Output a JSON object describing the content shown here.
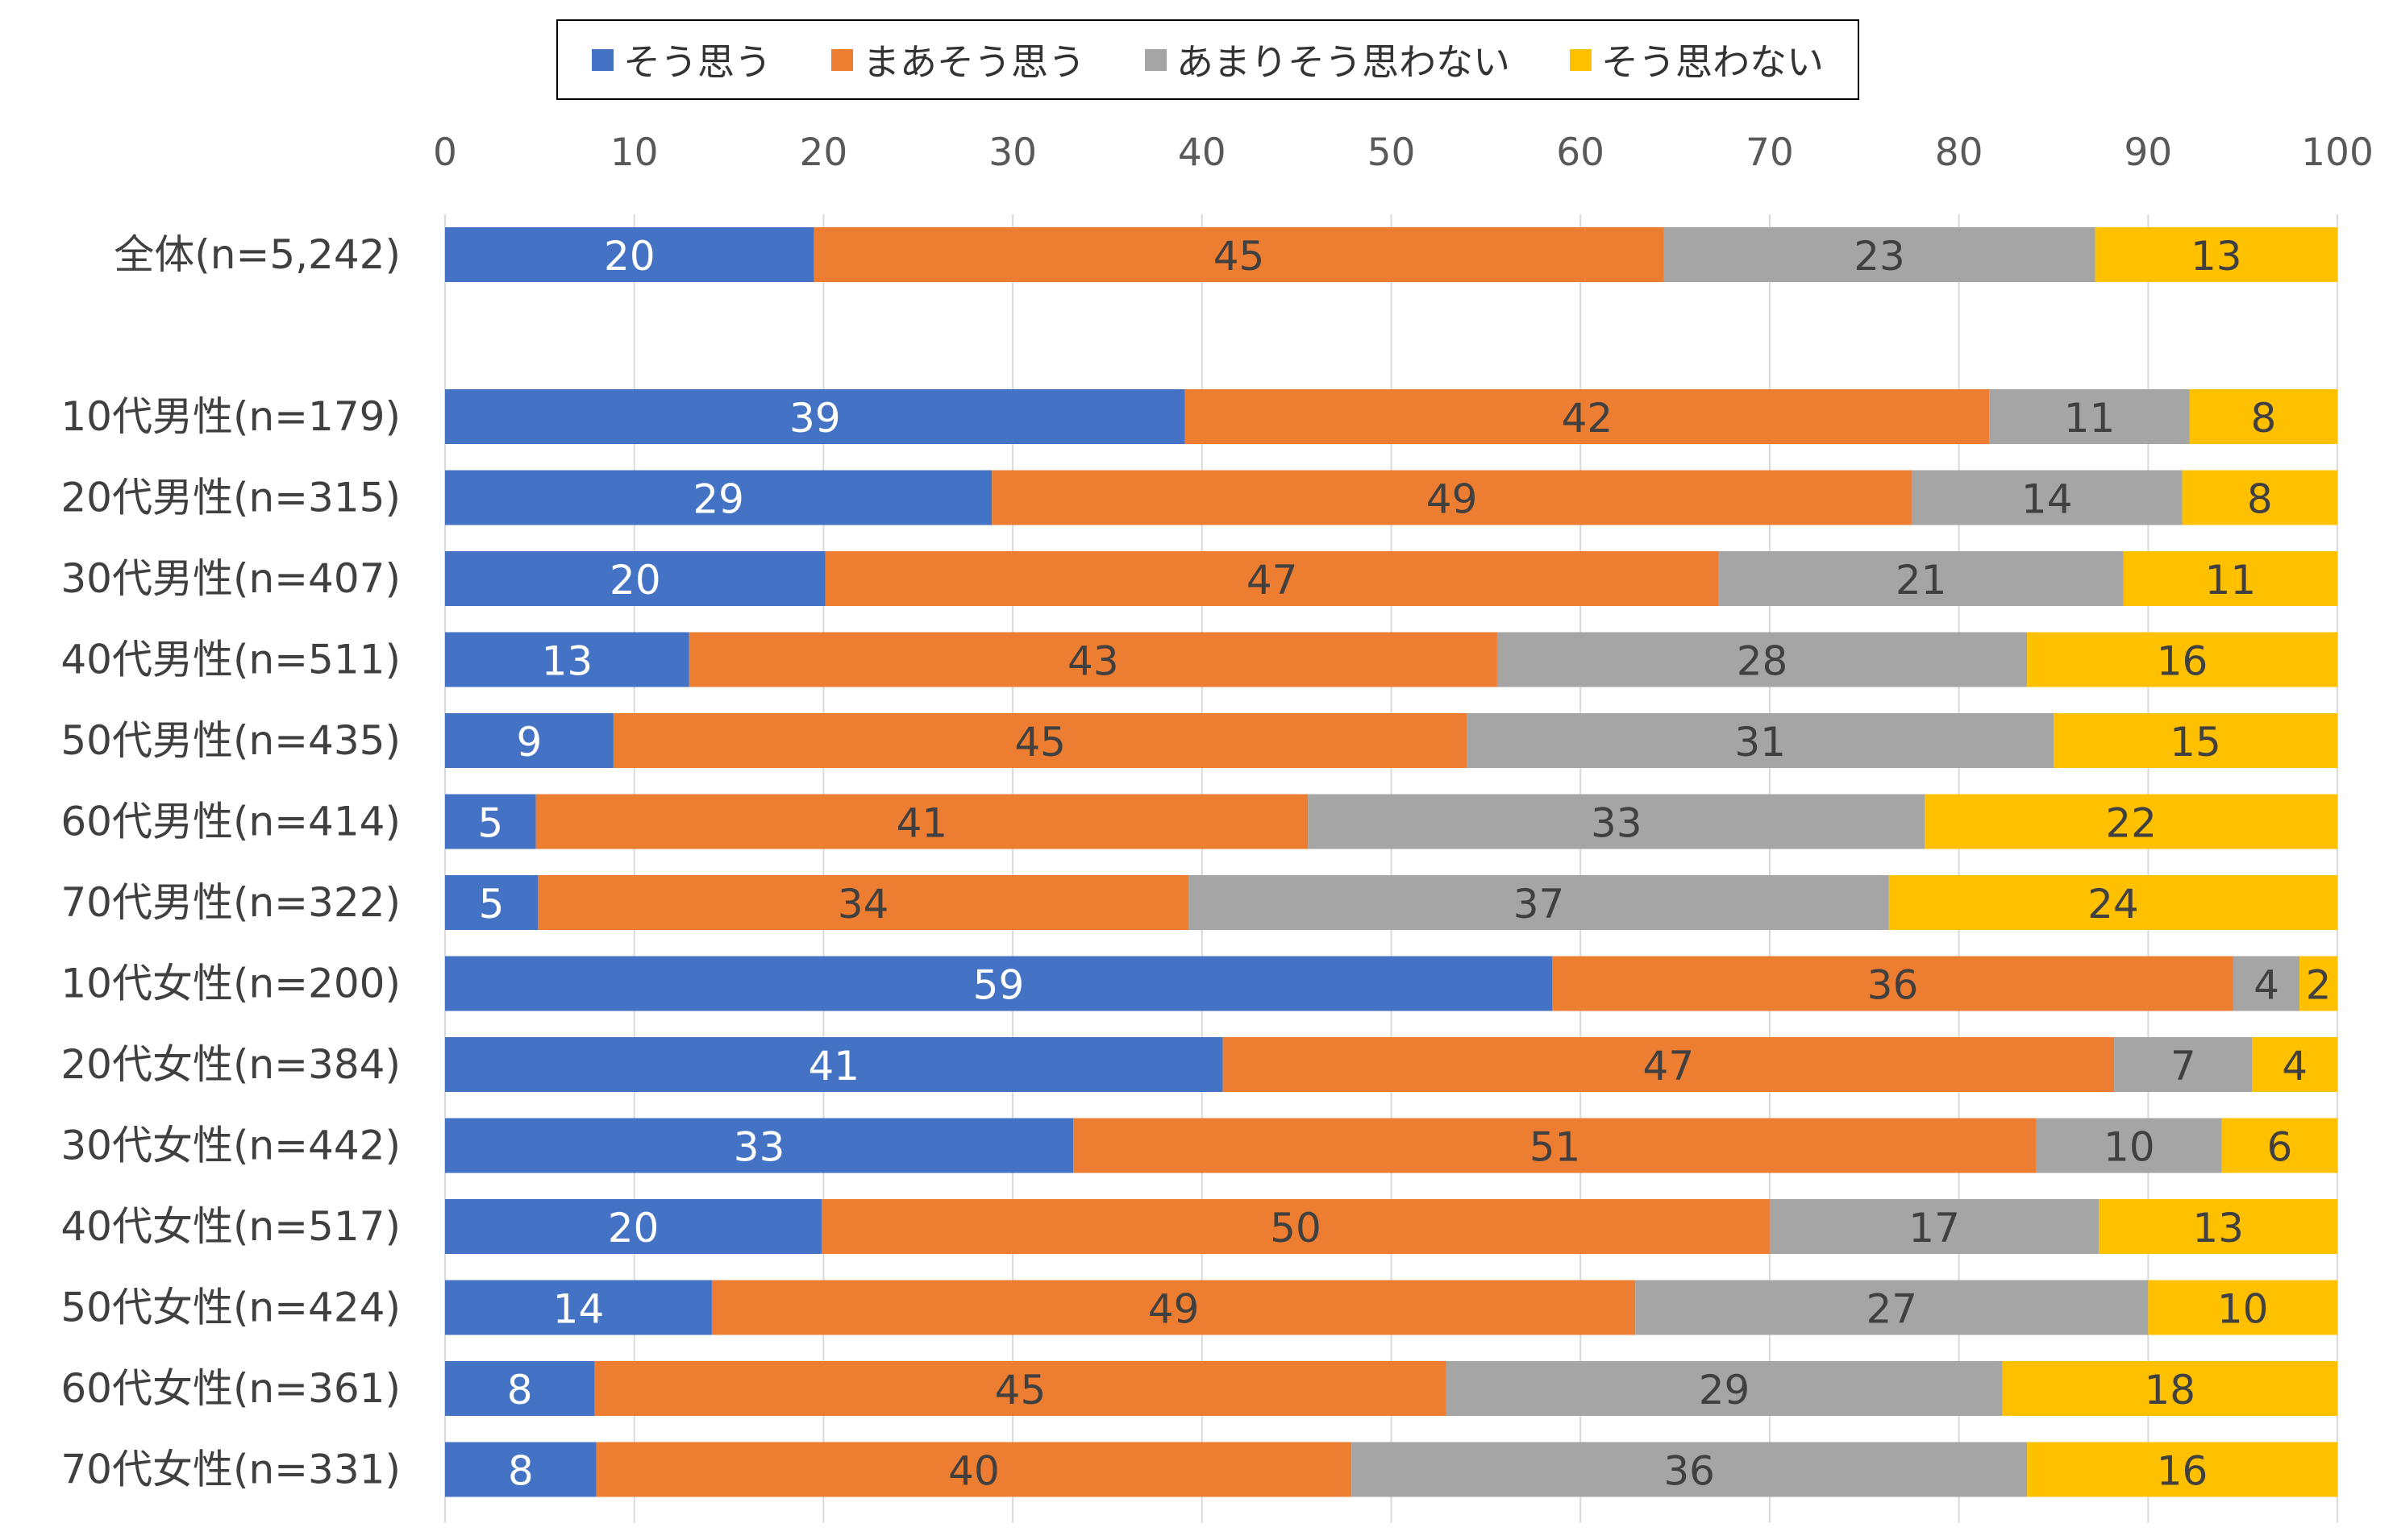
{
  "chart_data": {
    "type": "bar",
    "orientation": "horizontal",
    "stacked": true,
    "title": "",
    "xlabel": "",
    "ylabel": "",
    "xlim": [
      0,
      100
    ],
    "x_ticks": [
      "0",
      "10",
      "20",
      "30",
      "40",
      "50",
      "60",
      "70",
      "80",
      "90",
      "100"
    ],
    "grid": true,
    "legend_position": "top",
    "categories": [
      "全体(n=5,242)",
      "",
      "10代男性(n=179)",
      "20代男性(n=315)",
      "30代男性(n=407)",
      "40代男性(n=511)",
      "50代男性(n=435)",
      "60代男性(n=414)",
      "70代男性(n=322)",
      "10代女性(n=200)",
      "20代女性(n=384)",
      "30代女性(n=442)",
      "40代女性(n=517)",
      "50代女性(n=424)",
      "60代女性(n=361)",
      "70代女性(n=331)"
    ],
    "series": [
      {
        "name": "そう思う",
        "color": "#4472C4",
        "label_color": "#ffffff",
        "values": [
          19.5,
          null,
          39.1,
          28.9,
          20.1,
          12.9,
          8.9,
          4.8,
          4.9,
          58.5,
          41.1,
          33.2,
          19.9,
          14.1,
          7.9,
          8.0
        ],
        "labels": [
          "20",
          "",
          "39",
          "29",
          "20",
          "13",
          "9",
          "5",
          "5",
          "59",
          "41",
          "33",
          "20",
          "14",
          "8",
          "8"
        ]
      },
      {
        "name": "まあそう思う",
        "color": "#ED7D31",
        "label_color": "#404040",
        "values": [
          44.9,
          null,
          42.5,
          48.6,
          47.2,
          42.7,
          45.1,
          40.8,
          34.4,
          36.0,
          47.1,
          50.9,
          50.1,
          48.8,
          45.0,
          39.9
        ],
        "labels": [
          "45",
          "",
          "42",
          "49",
          "47",
          "43",
          "45",
          "41",
          "34",
          "36",
          "47",
          "51",
          "50",
          "49",
          "45",
          "40"
        ]
      },
      {
        "name": "あまりそう思わない",
        "color": "#A5A5A5",
        "label_color": "#404040",
        "values": [
          22.8,
          null,
          10.6,
          14.3,
          21.4,
          28.0,
          31.0,
          32.6,
          37.0,
          3.5,
          7.3,
          9.8,
          17.4,
          27.1,
          29.4,
          35.7
        ],
        "labels": [
          "23",
          "",
          "11",
          "14",
          "21",
          "28",
          "31",
          "33",
          "37",
          "4",
          "7",
          "10",
          "17",
          "27",
          "29",
          "36"
        ]
      },
      {
        "name": "そう思わない",
        "color": "#FFC000",
        "label_color": "#404040",
        "values": [
          12.8,
          null,
          7.8,
          8.2,
          11.3,
          16.4,
          15.0,
          21.8,
          23.7,
          2.0,
          4.5,
          6.1,
          12.6,
          10.0,
          17.7,
          16.4
        ],
        "labels": [
          "13",
          "",
          "8",
          "8",
          "11",
          "16",
          "15",
          "22",
          "24",
          "2",
          "4",
          "6",
          "13",
          "10",
          "18",
          "16"
        ]
      }
    ]
  }
}
